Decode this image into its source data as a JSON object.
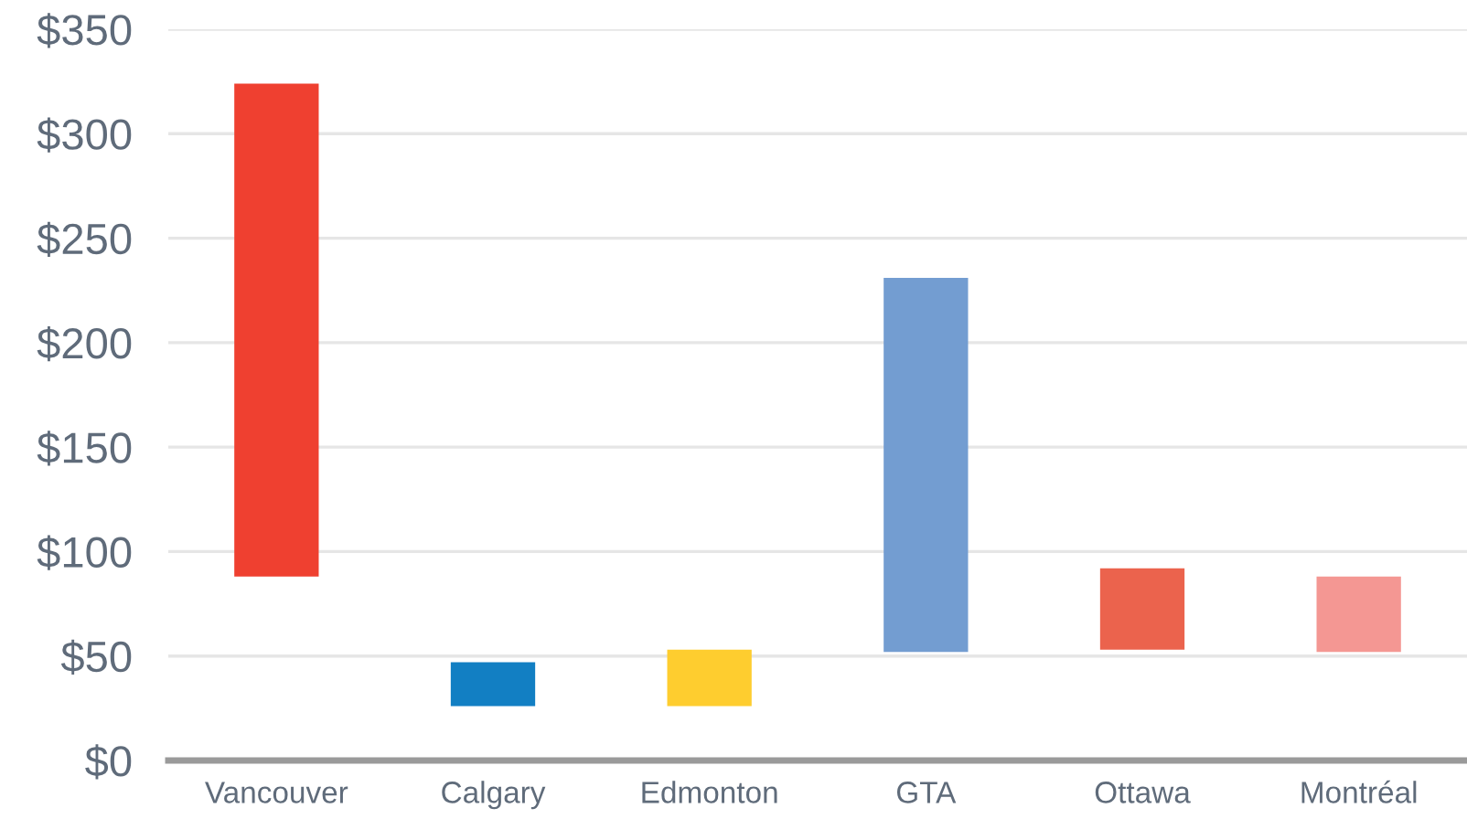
{
  "chart_data": {
    "type": "bar",
    "categories": [
      "Vancouver",
      "Calgary",
      "Edmonton",
      "GTA",
      "Ottawa",
      "Montréal"
    ],
    "base": [
      88,
      26,
      26,
      52,
      53,
      52
    ],
    "values": [
      236,
      21,
      27,
      179,
      39,
      36
    ],
    "colors": [
      "#ef4030",
      "#127fc3",
      "#fecd2f",
      "#739dd1",
      "#eb634d",
      "#f49793"
    ],
    "ylim": [
      0,
      350
    ],
    "yticks": [
      {
        "value": 0,
        "label": "$0"
      },
      {
        "value": 50,
        "label": "$50"
      },
      {
        "value": 100,
        "label": "$100"
      },
      {
        "value": 150,
        "label": "$150"
      },
      {
        "value": 200,
        "label": "$200"
      },
      {
        "value": 250,
        "label": "$250"
      },
      {
        "value": 300,
        "label": "$300"
      },
      {
        "value": 350,
        "label": "$350"
      }
    ],
    "grid": "y"
  }
}
